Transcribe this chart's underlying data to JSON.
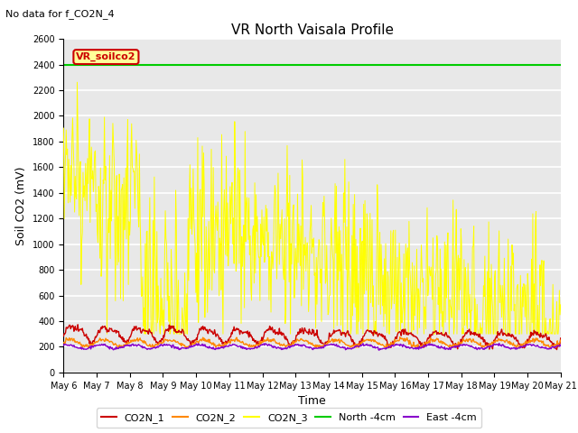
{
  "title": "VR North Vaisala Profile",
  "subtitle": "No data for f_CO2N_4",
  "ylabel": "Soil CO2 (mV)",
  "xlabel": "Time",
  "ylim": [
    0,
    2600
  ],
  "yticks": [
    0,
    200,
    400,
    600,
    800,
    1000,
    1200,
    1400,
    1600,
    1800,
    2000,
    2200,
    2400,
    2600
  ],
  "date_labels": [
    "May 6",
    "May 7",
    "May 8",
    "May 9",
    "May 10",
    "May 11",
    "May 12",
    "May 13",
    "May 14",
    "May 15",
    "May 16",
    "May 17",
    "May 18",
    "May 19",
    "May 20",
    "May 21"
  ],
  "legend_entries": [
    {
      "label": "CO2N_1",
      "color": "#cc0000"
    },
    {
      "label": "CO2N_2",
      "color": "#ff8800"
    },
    {
      "label": "CO2N_3",
      "color": "#ffff00"
    },
    {
      "label": "North -4cm",
      "color": "#00cc00"
    },
    {
      "label": "East -4cm",
      "color": "#8800cc"
    }
  ],
  "inset_label": "VR_soilco2",
  "inset_label_color": "#cc0000",
  "inset_box_color": "#ffff99",
  "north_4cm_value": 2400,
  "axes_bg_color": "#e8e8e8",
  "fig_bg_color": "#ffffff",
  "grid_color": "#ffffff",
  "title_fontsize": 11,
  "subtitle_fontsize": 8,
  "ylabel_fontsize": 9,
  "xlabel_fontsize": 9,
  "tick_fontsize": 7,
  "legend_fontsize": 8
}
